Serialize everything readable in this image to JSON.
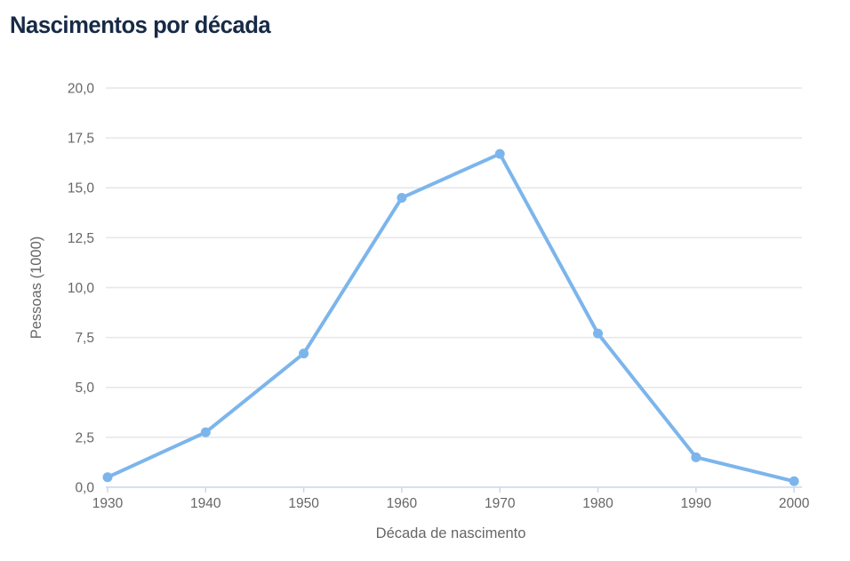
{
  "chart_data": {
    "type": "line",
    "title": "Nascimentos por década",
    "xlabel": "Década de nascimento",
    "ylabel": "Pessoas (1000)",
    "categories": [
      "1930",
      "1940",
      "1950",
      "1960",
      "1970",
      "1980",
      "1990",
      "2000"
    ],
    "values": [
      0.5,
      2.75,
      6.7,
      14.5,
      16.7,
      7.7,
      1.5,
      0.3
    ],
    "ylim": [
      0,
      20
    ],
    "ytick_step": 2.5,
    "y_tick_values": [
      0,
      2.5,
      5,
      7.5,
      10,
      12.5,
      15,
      17.5,
      20
    ],
    "y_tick_labels": [
      "0,0",
      "2,5",
      "5,0",
      "7,5",
      "10,0",
      "12,5",
      "15,0",
      "17,5",
      "20,0"
    ],
    "grid": true,
    "legend": "none",
    "colors": {
      "series": "#7cb5ec",
      "grid": "#e6e6e6",
      "axis_line": "#ccd6eb",
      "tick_label": "#666666",
      "axis_title": "#666666",
      "title": "#172a46"
    }
  }
}
